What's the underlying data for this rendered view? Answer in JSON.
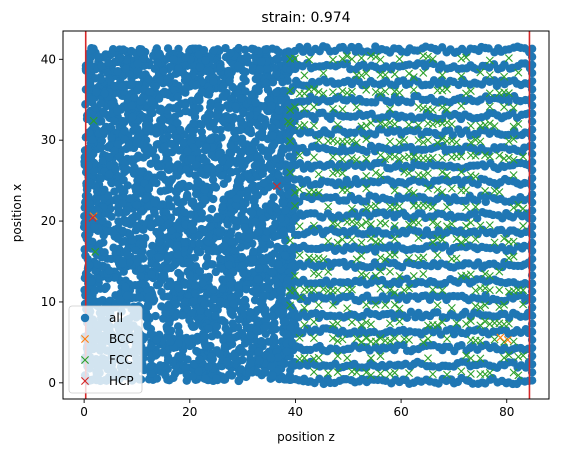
{
  "chart_data": {
    "type": "scatter",
    "title": "strain: 0.974",
    "xlabel": "position z",
    "ylabel": "position x",
    "xlim": [
      -4,
      88
    ],
    "ylim": [
      -2,
      43.5
    ],
    "xticks": [
      0,
      20,
      40,
      60,
      80
    ],
    "yticks": [
      0,
      10,
      20,
      30,
      40
    ],
    "grid": false,
    "legend_position": "lower-left",
    "boundary_lines": {
      "z": [
        0.3,
        84.3
      ],
      "color": "#d62728"
    },
    "series": [
      {
        "name": "all",
        "marker": "circle",
        "color": "#1f77b4",
        "description_regions": {
          "amorphous_z": [
            0,
            40
          ],
          "crystalline_z": [
            40,
            84.3
          ],
          "layer_spacing_x": 2.05,
          "layer_count": 21,
          "extra_points": [
            [
              53.5,
              0.1
            ],
            [
              69.5,
              0.4
            ],
            [
              41.5,
              0.2
            ],
            [
              1.0,
              22.2
            ],
            [
              0.4,
              19.6
            ],
            [
              0.1,
              16.5
            ]
          ]
        }
      },
      {
        "name": "BCC",
        "marker": "x",
        "color": "#ff7f0e",
        "points": [
          [
            1.8,
            20.6
          ],
          [
            78.8,
            5.6
          ],
          [
            80.2,
            5.3
          ]
        ]
      },
      {
        "name": "FCC",
        "marker": "x",
        "color": "#2ca02c",
        "z_range": [
          39,
          84
        ],
        "x_layers_from": 1.2,
        "x_layer_step": 2.05,
        "count_layers": 20,
        "stray_points": [
          [
            1.8,
            32.4
          ],
          [
            2.1,
            16.2
          ],
          [
            38.6,
            32.3
          ],
          [
            41.0,
            10.6
          ]
        ]
      },
      {
        "name": "HCP",
        "marker": "x",
        "color": "#d62728",
        "points": [
          [
            36.5,
            24.3
          ],
          [
            1.6,
            20.4
          ]
        ]
      }
    ]
  }
}
